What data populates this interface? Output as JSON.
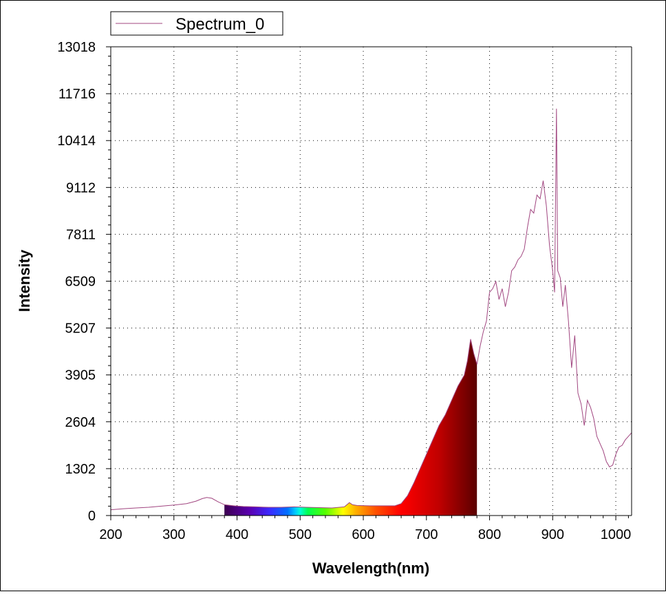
{
  "chart_data": {
    "type": "line",
    "title": "",
    "xlabel": "Wavelength(nm)",
    "ylabel": "Intensity",
    "xlim": [
      200,
      1025
    ],
    "ylim": [
      0,
      13018
    ],
    "x_ticks": [
      200,
      300,
      400,
      500,
      600,
      700,
      800,
      900,
      1000
    ],
    "y_ticks": [
      0,
      1302,
      2604,
      3905,
      5207,
      6509,
      7811,
      9112,
      10414,
      11716,
      13018
    ],
    "x_tick_labels": [
      "200",
      "300",
      "400",
      "500",
      "600",
      "700",
      "800",
      "900",
      "1000"
    ],
    "y_tick_labels": [
      "0",
      "1302",
      "2604",
      "3905",
      "5207",
      "6509",
      "7811",
      "9112",
      "10414",
      "11716",
      "13018"
    ],
    "grid": true,
    "legend": {
      "position": "top-left",
      "entries": [
        "Spectrum_0"
      ]
    },
    "visible_spectrum_fill": {
      "from_nm": 380,
      "to_nm": 780
    },
    "series": [
      {
        "name": "Spectrum_0",
        "color": "#a0447f",
        "points": [
          [
            200,
            160
          ],
          [
            220,
            190
          ],
          [
            240,
            210
          ],
          [
            260,
            230
          ],
          [
            280,
            260
          ],
          [
            300,
            290
          ],
          [
            320,
            330
          ],
          [
            335,
            400
          ],
          [
            345,
            470
          ],
          [
            352,
            500
          ],
          [
            360,
            480
          ],
          [
            370,
            380
          ],
          [
            380,
            300
          ],
          [
            395,
            270
          ],
          [
            410,
            250
          ],
          [
            430,
            240
          ],
          [
            450,
            230
          ],
          [
            470,
            230
          ],
          [
            490,
            240
          ],
          [
            510,
            230
          ],
          [
            530,
            220
          ],
          [
            550,
            210
          ],
          [
            570,
            240
          ],
          [
            578,
            360
          ],
          [
            583,
            300
          ],
          [
            590,
            280
          ],
          [
            610,
            270
          ],
          [
            630,
            270
          ],
          [
            650,
            270
          ],
          [
            660,
            330
          ],
          [
            670,
            550
          ],
          [
            680,
            900
          ],
          [
            690,
            1300
          ],
          [
            700,
            1700
          ],
          [
            710,
            2100
          ],
          [
            720,
            2500
          ],
          [
            730,
            2800
          ],
          [
            740,
            3200
          ],
          [
            750,
            3600
          ],
          [
            760,
            3900
          ],
          [
            765,
            4300
          ],
          [
            770,
            4900
          ],
          [
            775,
            4500
          ],
          [
            780,
            4200
          ],
          [
            785,
            4700
          ],
          [
            790,
            5100
          ],
          [
            795,
            5400
          ],
          [
            800,
            6200
          ],
          [
            805,
            6300
          ],
          [
            810,
            6500
          ],
          [
            815,
            6000
          ],
          [
            820,
            6300
          ],
          [
            825,
            5800
          ],
          [
            830,
            6200
          ],
          [
            835,
            6800
          ],
          [
            840,
            6900
          ],
          [
            845,
            7100
          ],
          [
            850,
            7200
          ],
          [
            855,
            7400
          ],
          [
            860,
            8000
          ],
          [
            865,
            8500
          ],
          [
            870,
            8400
          ],
          [
            875,
            8900
          ],
          [
            880,
            8800
          ],
          [
            885,
            9300
          ],
          [
            890,
            8600
          ],
          [
            895,
            7500
          ],
          [
            900,
            6800
          ],
          [
            903,
            6200
          ],
          [
            906,
            11300
          ],
          [
            908,
            6800
          ],
          [
            912,
            6600
          ],
          [
            916,
            5800
          ],
          [
            920,
            6400
          ],
          [
            925,
            5400
          ],
          [
            930,
            4100
          ],
          [
            935,
            5000
          ],
          [
            940,
            3400
          ],
          [
            945,
            3100
          ],
          [
            950,
            2500
          ],
          [
            955,
            3200
          ],
          [
            960,
            3000
          ],
          [
            965,
            2700
          ],
          [
            970,
            2200
          ],
          [
            975,
            2000
          ],
          [
            980,
            1800
          ],
          [
            985,
            1500
          ],
          [
            990,
            1350
          ],
          [
            995,
            1400
          ],
          [
            1000,
            1700
          ],
          [
            1005,
            1900
          ],
          [
            1010,
            1950
          ],
          [
            1015,
            2100
          ],
          [
            1020,
            2200
          ],
          [
            1025,
            2300
          ]
        ]
      }
    ]
  }
}
